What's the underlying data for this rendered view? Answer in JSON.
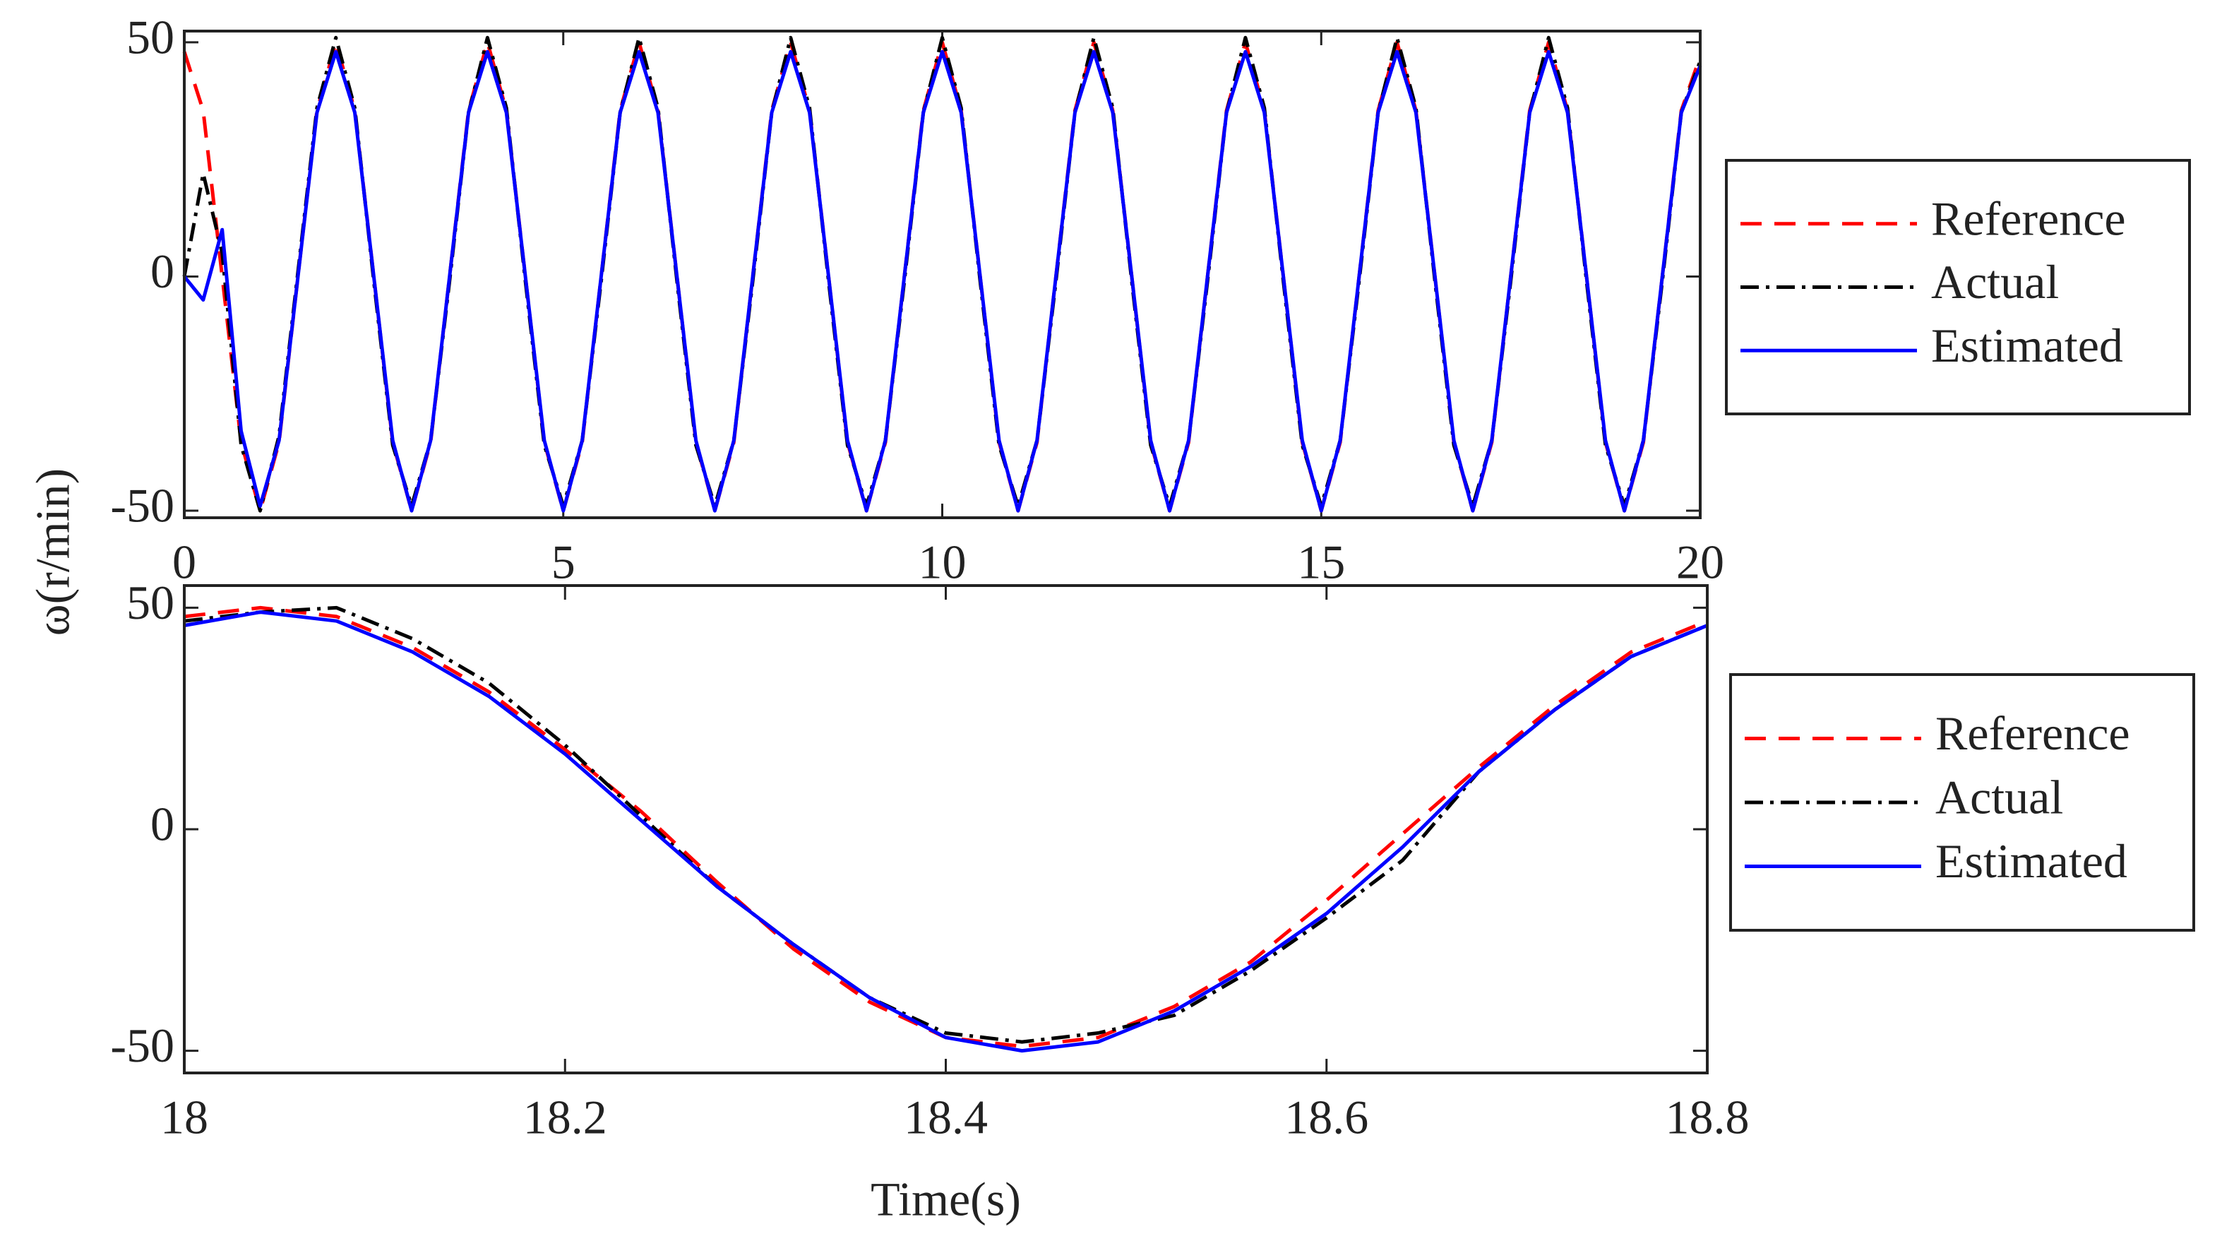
{
  "chart_data": [
    {
      "type": "line",
      "y_label": "ω(r/min)",
      "x": [
        0,
        0.25,
        0.5,
        0.75,
        1,
        1.25,
        1.5,
        1.75,
        2,
        2.25,
        2.5,
        2.75,
        3,
        3.25,
        3.5,
        3.75,
        4,
        4.25,
        4.5,
        4.75,
        5,
        5.25,
        5.5,
        5.75,
        6,
        6.25,
        6.5,
        6.75,
        7,
        7.25,
        7.5,
        7.75,
        8,
        8.25,
        8.5,
        8.75,
        9,
        9.25,
        9.5,
        9.75,
        10,
        10.25,
        10.5,
        10.75,
        11,
        11.25,
        11.5,
        11.75,
        12,
        12.25,
        12.5,
        12.75,
        13,
        13.25,
        13.5,
        13.75,
        14,
        14.25,
        14.5,
        14.75,
        15,
        15.25,
        15.5,
        15.75,
        16,
        16.25,
        16.5,
        16.75,
        17,
        17.25,
        17.5,
        17.75,
        18,
        18.25,
        18.5,
        18.75,
        19,
        19.25,
        19.5,
        19.75,
        20
      ],
      "series": [
        {
          "name": "Reference",
          "color": "#ff0000",
          "style": "dashed",
          "values": [
            48,
            35.4,
            0,
            -35.4,
            -50,
            -35.4,
            0,
            35.4,
            50,
            35.4,
            0,
            -35.4,
            -50,
            -35.4,
            0,
            35.4,
            50,
            35.4,
            0,
            -35.4,
            -50,
            -35.4,
            0,
            35.4,
            50,
            35.4,
            0,
            -35.4,
            -50,
            -35.4,
            0,
            35.4,
            50,
            35.4,
            0,
            -35.4,
            -50,
            -35.4,
            0,
            35.4,
            50,
            35.4,
            0,
            -35.4,
            -50,
            -35.4,
            0,
            35.4,
            50,
            35.4,
            0,
            -35.4,
            -50,
            -35.4,
            0,
            35.4,
            50,
            35.4,
            0,
            -35.4,
            -50,
            -35.4,
            0,
            35.4,
            50,
            35.4,
            0,
            -35.4,
            -50,
            -35.4,
            0,
            35.4,
            50,
            35.4,
            0,
            -35.4,
            -50,
            -35.4,
            0,
            35.4,
            47
          ]
        },
        {
          "name": "Actual",
          "color": "#000000",
          "style": "dashdot",
          "values": [
            0,
            22,
            5,
            -36,
            -50,
            -34,
            1,
            36,
            51,
            36,
            -1,
            -36,
            -49,
            -35,
            -1,
            35,
            51,
            36,
            -1,
            -36,
            -49,
            -35,
            -1,
            35,
            51,
            36,
            -1,
            -36,
            -49,
            -35,
            -1,
            35,
            51,
            36,
            -1,
            -36,
            -49,
            -35,
            -1,
            35,
            51,
            36,
            -1,
            -36,
            -49,
            -35,
            -1,
            35,
            51,
            36,
            -1,
            -36,
            -49,
            -35,
            -1,
            35,
            51,
            36,
            -1,
            -36,
            -49,
            -35,
            -1,
            35,
            51,
            36,
            -1,
            -36,
            -49,
            -35,
            -1,
            35,
            51,
            36,
            -1,
            -36,
            -49,
            -35,
            -1,
            35,
            46
          ]
        },
        {
          "name": "Estimated",
          "color": "#0000ff",
          "style": "solid",
          "values": [
            0,
            -5,
            10,
            -33,
            -49,
            -35,
            0,
            35,
            48,
            35,
            0,
            -35,
            -50,
            -35,
            0,
            35,
            48,
            35,
            0,
            -35,
            -50,
            -35,
            0,
            35,
            48,
            35,
            0,
            -35,
            -50,
            -35,
            0,
            35,
            48,
            35,
            0,
            -35,
            -50,
            -35,
            0,
            35,
            48,
            35,
            0,
            -35,
            -50,
            -35,
            0,
            35,
            48,
            35,
            0,
            -35,
            -50,
            -35,
            0,
            35,
            48,
            35,
            0,
            -35,
            -50,
            -35,
            0,
            35,
            48,
            35,
            0,
            -35,
            -50,
            -35,
            0,
            35,
            48,
            35,
            0,
            -35,
            -50,
            -35,
            0,
            35,
            45
          ]
        }
      ],
      "xlim": [
        0,
        20
      ],
      "ylim": [
        -51.5,
        52.4
      ],
      "xticks": [
        0,
        5,
        10,
        15,
        20
      ],
      "yticks": [
        -50,
        0,
        50
      ],
      "legend": "right"
    },
    {
      "type": "line",
      "x_label": "Time(s)",
      "x": [
        18,
        18.04,
        18.08,
        18.12,
        18.16,
        18.2,
        18.24,
        18.28,
        18.32,
        18.36,
        18.4,
        18.44,
        18.48,
        18.52,
        18.56,
        18.6,
        18.64,
        18.68,
        18.72,
        18.76,
        18.8
      ],
      "series": [
        {
          "name": "Reference",
          "color": "#ff0000",
          "style": "dashed",
          "values": [
            48,
            50,
            48,
            41,
            31,
            18,
            4,
            -12,
            -27,
            -39,
            -47,
            -49,
            -47,
            -40,
            -30,
            -16,
            -1,
            14,
            28,
            40,
            47
          ]
        },
        {
          "name": "Actual",
          "color": "#000000",
          "style": "dashdot",
          "values": [
            47,
            49,
            50,
            43,
            33,
            19,
            3,
            -13,
            -26,
            -38,
            -46,
            -48,
            -46,
            -42,
            -32,
            -20,
            -7,
            13,
            27,
            39,
            46
          ]
        },
        {
          "name": "Estimated",
          "color": "#0000ff",
          "style": "solid",
          "values": [
            46,
            49,
            47,
            40,
            30,
            17,
            2,
            -13,
            -26,
            -38,
            -47,
            -50,
            -48,
            -41,
            -31,
            -19,
            -4,
            13,
            27,
            39,
            46
          ]
        }
      ],
      "xlim": [
        18,
        18.8
      ],
      "ylim": [
        -55,
        55
      ],
      "xticks": [
        18,
        18.2,
        18.4,
        18.6,
        18.8
      ],
      "yticks": [
        -50,
        0,
        50
      ],
      "legend": "right"
    }
  ]
}
